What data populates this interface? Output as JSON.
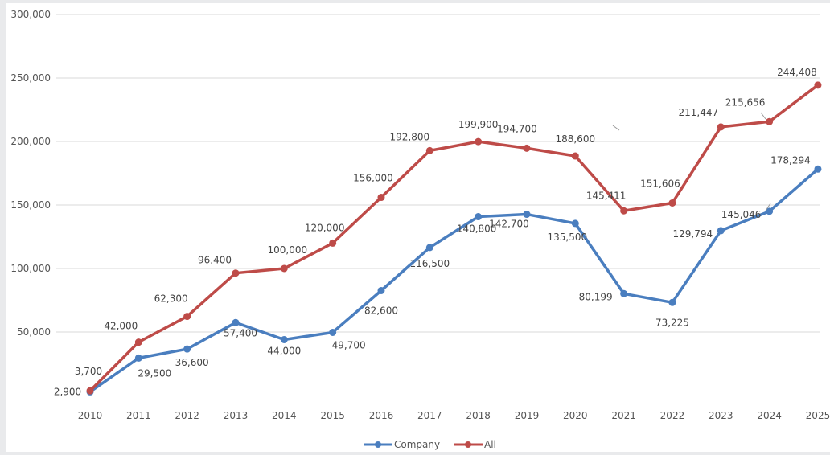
{
  "chart_data": {
    "type": "line",
    "title": "",
    "xlabel": "",
    "ylabel": "",
    "x": [
      "2010",
      "2011",
      "2012",
      "2013",
      "2014",
      "2015",
      "2016",
      "2017",
      "2018",
      "2019",
      "2020",
      "2021",
      "2022",
      "2023",
      "2024",
      "2025"
    ],
    "ylim": [
      0,
      300000
    ],
    "yticks": [
      0,
      50000,
      100000,
      150000,
      200000,
      250000,
      300000
    ],
    "ytick_labels": [
      "-",
      "50,000",
      "100,000",
      "150,000",
      "200,000",
      "250,000",
      "300,000"
    ],
    "grid": "horizontal",
    "legend_position": "bottom",
    "series": [
      {
        "name": "Company",
        "color": "#4a7ebf",
        "values": [
          2900,
          29500,
          36600,
          57400,
          44000,
          49700,
          82600,
          116500,
          140800,
          142700,
          135500,
          80199,
          73225,
          129794,
          145046,
          178294
        ],
        "labels": [
          "2,900",
          "29,500",
          "36,600",
          "57,400",
          "44,000",
          "49,700",
          "82,600",
          "116,500",
          "140,800",
          "142,700",
          "135,500",
          "80,199",
          "73,225",
          "129,794",
          "145,046",
          "178,294"
        ]
      },
      {
        "name": "All",
        "color": "#be4b48",
        "values": [
          3700,
          42000,
          62300,
          96400,
          100000,
          120000,
          156000,
          192800,
          199900,
          194700,
          188600,
          145411,
          151606,
          211447,
          215656,
          244408
        ],
        "labels": [
          "3,700",
          "42,000",
          "62,300",
          "96,400",
          "100,000",
          "120,000",
          "156,000",
          "192,800",
          "199,900",
          "194,700",
          "188,600",
          "145,411",
          "151,606",
          "211,447",
          "215,656",
          "244,408"
        ]
      }
    ]
  }
}
